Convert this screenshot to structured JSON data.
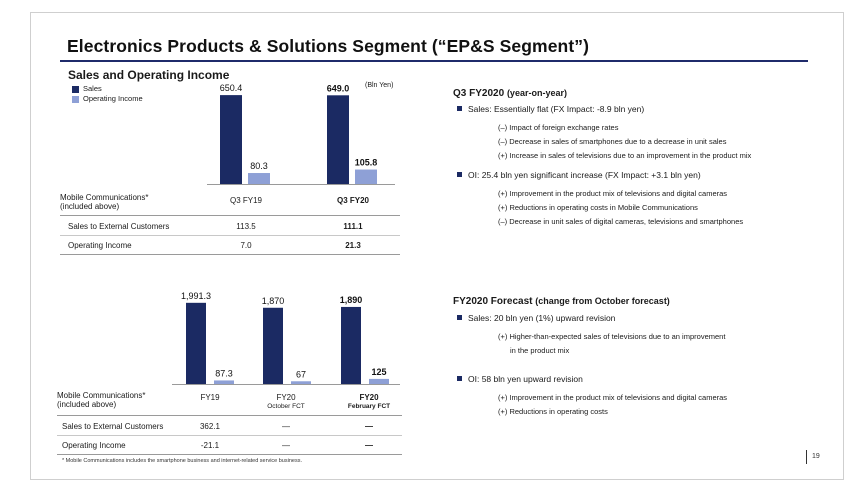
{
  "slide": {
    "title": "Electronics Products & Solutions Segment (“EP&S Segment”)",
    "page_number": "19",
    "footnote": "* Mobile Communications includes the smartphone business and internet-related service business."
  },
  "left": {
    "heading": "Sales and Operating Income",
    "unit": "(Bln Yen)",
    "legend": {
      "sales": "Sales",
      "oi": "Operating Income"
    },
    "colors": {
      "sales": "#1b2a63",
      "oi": "#8ea0d6"
    }
  },
  "chart_data": [
    {
      "type": "bar",
      "title": "Sales and Operating Income",
      "categories": [
        "Q3 FY19",
        "Q3 FY20"
      ],
      "series": [
        {
          "name": "Sales",
          "values": [
            650.4,
            649.0
          ],
          "labels": [
            "650.4",
            "649.0"
          ]
        },
        {
          "name": "Operating Income",
          "values": [
            80.3,
            105.8
          ],
          "labels": [
            "80.3",
            "105.8"
          ]
        }
      ],
      "ylim": [
        0,
        900
      ],
      "table": {
        "header": [
          "Mobile Communications*",
          "(included above)"
        ],
        "columns": [
          "Q3 FY19",
          "Q3 FY20"
        ],
        "rows": [
          {
            "label": "Sales to External Customers",
            "values": [
              "113.5",
              "111.1"
            ]
          },
          {
            "label": "Operating Income",
            "values": [
              "7.0",
              "21.3"
            ]
          }
        ]
      }
    },
    {
      "type": "bar",
      "categories": [
        "FY19",
        "FY20",
        "FY20"
      ],
      "category_sub": [
        "",
        "October FCT",
        "February FCT"
      ],
      "series": [
        {
          "name": "Sales",
          "values": [
            1991.3,
            1870,
            1890
          ],
          "labels": [
            "1,991.3",
            "1,870",
            "1,890"
          ]
        },
        {
          "name": "Operating Income",
          "values": [
            87.3,
            67,
            125
          ],
          "labels": [
            "87.3",
            "67",
            "125"
          ]
        }
      ],
      "ylim": [
        0,
        2600
      ],
      "table": {
        "header": [
          "Mobile Communications*",
          "(included above)"
        ],
        "rows": [
          {
            "label": "Sales to External Customers",
            "values": [
              "362.1",
              "—",
              "—"
            ]
          },
          {
            "label": "Operating Income",
            "values": [
              "-21.1",
              "—",
              "—"
            ]
          }
        ]
      }
    }
  ],
  "right": {
    "q3": {
      "heading": "Q3 FY2020",
      "heading_suffix": "(year-on-year)",
      "sales": "Sales: Essentially flat (FX Impact: -8.9 bln yen)",
      "sales_items": [
        "(–) Impact of foreign exchange rates",
        "(–) Decrease in sales of smartphones due to a decrease in unit sales",
        "(+) Increase in sales of televisions due to an improvement in the product mix"
      ],
      "oi": "OI: 25.4 bln yen significant increase (FX Impact: +3.1 bln yen)",
      "oi_items": [
        "(+) Improvement in the product mix of televisions and digital cameras",
        "(+) Reductions in operating costs in Mobile Communications",
        "(–) Decrease in unit sales of digital cameras, televisions and smartphones"
      ]
    },
    "fy": {
      "heading": "FY2020 Forecast",
      "heading_suffix": "(change from October forecast)",
      "sales": "Sales: 20 bln yen (1%) upward revision",
      "sales_items": [
        "(+) Higher-than-expected sales of televisions due to an improvement",
        "in the product mix"
      ],
      "oi": "OI: 58 bln yen upward revision",
      "oi_items": [
        "(+) Improvement in the product mix of televisions and digital cameras",
        "(+) Reductions in operating costs"
      ]
    }
  }
}
